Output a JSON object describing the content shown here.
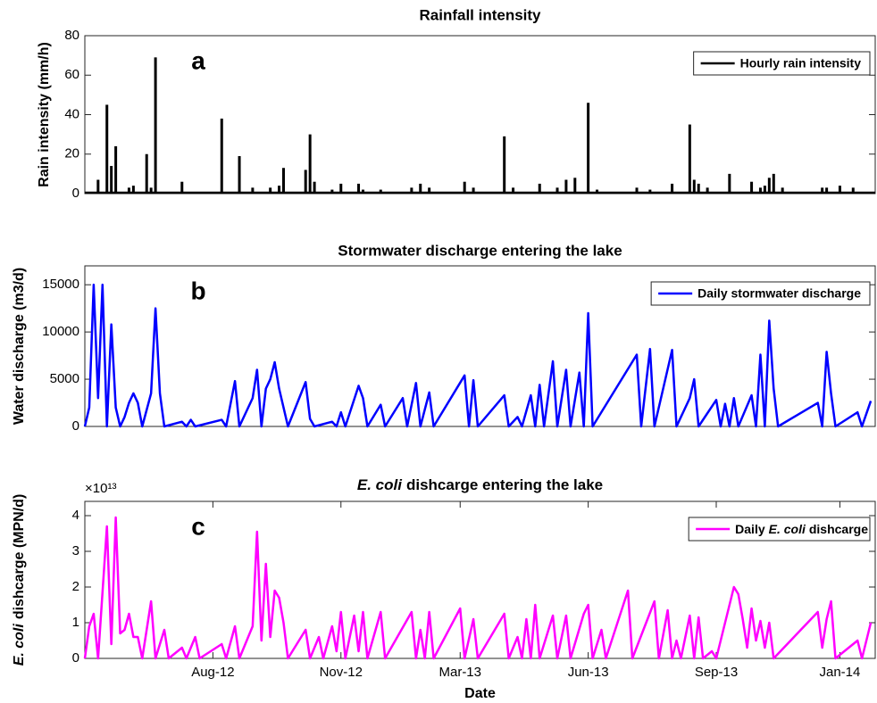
{
  "chart_data": [
    {
      "type": "bar",
      "title": "Rainfall intensity",
      "panel_label": "a",
      "ylabel": "Rain intensity (mm/h)",
      "xlim": [
        2012.29,
        2014.08
      ],
      "ylim": [
        0,
        80
      ],
      "yticks": [
        0,
        20,
        40,
        60,
        80
      ],
      "legend": "upper right",
      "x": [
        2012.32,
        2012.34,
        2012.35,
        2012.36,
        2012.39,
        2012.4,
        2012.43,
        2012.44,
        2012.45,
        2012.51,
        2012.6,
        2012.64,
        2012.67,
        2012.71,
        2012.73,
        2012.74,
        2012.79,
        2012.8,
        2012.81,
        2012.85,
        2012.87,
        2012.91,
        2012.92,
        2012.96,
        2013.03,
        2013.05,
        2013.07,
        2013.15,
        2013.17,
        2013.24,
        2013.26,
        2013.32,
        2013.36,
        2013.38,
        2013.4,
        2013.43,
        2013.45,
        2013.54,
        2013.57,
        2013.62,
        2013.66,
        2013.67,
        2013.68,
        2013.7,
        2013.75,
        2013.8,
        2013.82,
        2013.83,
        2013.84,
        2013.85,
        2013.87,
        2013.96,
        2013.97,
        2014.0,
        2014.03
      ],
      "series": [
        {
          "name": "Hourly rain intensity",
          "color": "#000000",
          "values": [
            7,
            45,
            14,
            24,
            3,
            4,
            20,
            3,
            69,
            6,
            38,
            19,
            3,
            3,
            4,
            13,
            12,
            30,
            6,
            2,
            5,
            5,
            2,
            2,
            3,
            5,
            3,
            6,
            3,
            29,
            3,
            5,
            3,
            7,
            8,
            46,
            2,
            3,
            2,
            5,
            35,
            7,
            5,
            3,
            10,
            6,
            3,
            4,
            8,
            10,
            3,
            3,
            3,
            4,
            3
          ]
        }
      ]
    },
    {
      "type": "line",
      "title": "Stormwater discharge entering the lake",
      "panel_label": "b",
      "ylabel": "Water discharge (m3/d)",
      "xlim": [
        2012.29,
        2014.08
      ],
      "ylim": [
        0,
        17000
      ],
      "yticks": [
        0,
        5000,
        10000,
        15000
      ],
      "legend": "upper right",
      "x": [
        2012.29,
        2012.3,
        2012.31,
        2012.32,
        2012.33,
        2012.34,
        2012.35,
        2012.36,
        2012.37,
        2012.38,
        2012.39,
        2012.4,
        2012.41,
        2012.42,
        2012.44,
        2012.45,
        2012.46,
        2012.47,
        2012.51,
        2012.52,
        2012.53,
        2012.54,
        2012.6,
        2012.61,
        2012.63,
        2012.64,
        2012.67,
        2012.68,
        2012.69,
        2012.7,
        2012.71,
        2012.72,
        2012.73,
        2012.74,
        2012.75,
        2012.79,
        2012.8,
        2012.81,
        2012.85,
        2012.86,
        2012.87,
        2012.88,
        2012.91,
        2012.92,
        2012.93,
        2012.96,
        2012.97,
        2013.01,
        2013.02,
        2013.04,
        2013.05,
        2013.07,
        2013.08,
        2013.15,
        2013.16,
        2013.17,
        2013.18,
        2013.24,
        2013.25,
        2013.27,
        2013.28,
        2013.3,
        2013.31,
        2013.32,
        2013.33,
        2013.35,
        2013.36,
        2013.38,
        2013.39,
        2013.41,
        2013.42,
        2013.43,
        2013.44,
        2013.54,
        2013.55,
        2013.57,
        2013.58,
        2013.62,
        2013.63,
        2013.66,
        2013.67,
        2013.68,
        2013.72,
        2013.73,
        2013.74,
        2013.75,
        2013.76,
        2013.77,
        2013.8,
        2013.81,
        2013.82,
        2013.83,
        2013.84,
        2013.85,
        2013.86,
        2013.95,
        2013.96,
        2013.97,
        2013.98,
        2013.99,
        2014.04,
        2014.05,
        2014.07
      ],
      "series": [
        {
          "name": "Daily stormwater discharge",
          "color": "#0000ff",
          "values": [
            0,
            2000,
            15000,
            3000,
            15000,
            0,
            10800,
            2000,
            0,
            1000,
            2500,
            3500,
            2500,
            0,
            3500,
            12500,
            3500,
            0,
            500,
            0,
            700,
            0,
            700,
            0,
            4800,
            0,
            3000,
            6000,
            0,
            4000,
            5000,
            6800,
            4000,
            2000,
            0,
            4700,
            800,
            0,
            500,
            0,
            1500,
            0,
            4300,
            3000,
            0,
            2300,
            0,
            3000,
            0,
            4600,
            0,
            3600,
            0,
            5400,
            0,
            4900,
            0,
            3300,
            0,
            1000,
            0,
            3300,
            0,
            4400,
            0,
            6900,
            0,
            6000,
            0,
            5700,
            0,
            12000,
            0,
            7600,
            0,
            8200,
            0,
            8100,
            0,
            3000,
            5000,
            0,
            2800,
            0,
            2400,
            0,
            3000,
            0,
            3300,
            0,
            7600,
            0,
            11200,
            4000,
            0,
            2500,
            0,
            7900,
            3500,
            0,
            1500,
            0,
            2700
          ]
        }
      ]
    },
    {
      "type": "line",
      "title": [
        {
          "text": "E. coli",
          "italic": true
        },
        {
          "text": "dishcarge entering the lake"
        }
      ],
      "panel_label": "c",
      "ylabel": [
        {
          "text": "E. coli",
          "italic": true
        },
        {
          "text": "dishcarge (MPN/d)"
        }
      ],
      "y_scale_label": "×10¹³",
      "xlabel": "Date",
      "xlim": [
        2012.29,
        2014.08
      ],
      "ylim": [
        0,
        4.4
      ],
      "yticks": [
        0,
        1,
        2,
        3,
        4
      ],
      "legend": "upper right",
      "xticks": [
        {
          "value": 2012.58,
          "label": "Aug-12"
        },
        {
          "value": 2012.87,
          "label": "Nov-12"
        },
        {
          "value": 2013.14,
          "label": "Mar-13"
        },
        {
          "value": 2013.43,
          "label": "Jun-13"
        },
        {
          "value": 2013.72,
          "label": "Sep-13"
        },
        {
          "value": 2014.0,
          "label": "Jan-14"
        }
      ],
      "x": [
        2012.29,
        2012.3,
        2012.31,
        2012.32,
        2012.34,
        2012.35,
        2012.36,
        2012.37,
        2012.38,
        2012.39,
        2012.4,
        2012.41,
        2012.42,
        2012.44,
        2012.45,
        2012.47,
        2012.48,
        2012.51,
        2012.52,
        2012.54,
        2012.55,
        2012.6,
        2012.61,
        2012.63,
        2012.64,
        2012.67,
        2012.68,
        2012.69,
        2012.7,
        2012.71,
        2012.72,
        2012.73,
        2012.74,
        2012.75,
        2012.79,
        2012.8,
        2012.82,
        2012.83,
        2012.85,
        2012.86,
        2012.87,
        2012.88,
        2012.9,
        2012.91,
        2012.92,
        2012.93,
        2012.96,
        2012.97,
        2013.03,
        2013.04,
        2013.05,
        2013.06,
        2013.07,
        2013.08,
        2013.14,
        2013.15,
        2013.17,
        2013.18,
        2013.24,
        2013.25,
        2013.27,
        2013.28,
        2013.29,
        2013.3,
        2013.31,
        2013.32,
        2013.35,
        2013.36,
        2013.38,
        2013.39,
        2013.42,
        2013.43,
        2013.44,
        2013.46,
        2013.47,
        2013.52,
        2013.53,
        2013.58,
        2013.59,
        2013.61,
        2013.62,
        2013.63,
        2013.64,
        2013.66,
        2013.67,
        2013.68,
        2013.69,
        2013.71,
        2013.72,
        2013.76,
        2013.77,
        2013.78,
        2013.79,
        2013.8,
        2013.81,
        2013.82,
        2013.83,
        2013.84,
        2013.85,
        2013.95,
        2013.96,
        2013.97,
        2013.98,
        2013.99,
        2014.04,
        2014.05,
        2014.07
      ],
      "series": [
        {
          "name": [
            {
              "text": "Daily"
            },
            {
              "text": "E. coli",
              "italic": true
            },
            {
              "text": "dishcarge"
            }
          ],
          "color": "#ff00ff",
          "values": [
            0,
            0.9,
            1.25,
            0,
            3.7,
            0.4,
            3.95,
            0.7,
            0.8,
            1.25,
            0.6,
            0.6,
            0,
            1.6,
            0,
            0.8,
            0,
            0.3,
            0,
            0.6,
            0,
            0.4,
            0,
            0.9,
            0,
            0.9,
            3.55,
            0.5,
            2.65,
            0.6,
            1.9,
            1.7,
            1,
            0,
            0.8,
            0,
            0.6,
            0,
            0.9,
            0.2,
            1.3,
            0,
            1.2,
            0.2,
            1.3,
            0,
            1.3,
            0,
            1.3,
            0,
            0.8,
            0,
            1.3,
            0,
            1.4,
            0,
            1.1,
            0,
            1.25,
            0,
            0.6,
            0,
            1.1,
            0,
            1.5,
            0,
            1.2,
            0,
            1.2,
            0,
            1.25,
            1.5,
            0,
            0.8,
            0,
            1.9,
            0,
            1.6,
            0,
            1.35,
            0,
            0.5,
            0,
            1.2,
            0,
            1.15,
            0,
            0.2,
            0,
            2,
            1.8,
            1.1,
            0.3,
            1.4,
            0.5,
            1.05,
            0.3,
            1,
            0,
            1.3,
            0.3,
            1.1,
            1.6,
            0,
            0.5,
            0,
            1
          ]
        }
      ]
    }
  ]
}
